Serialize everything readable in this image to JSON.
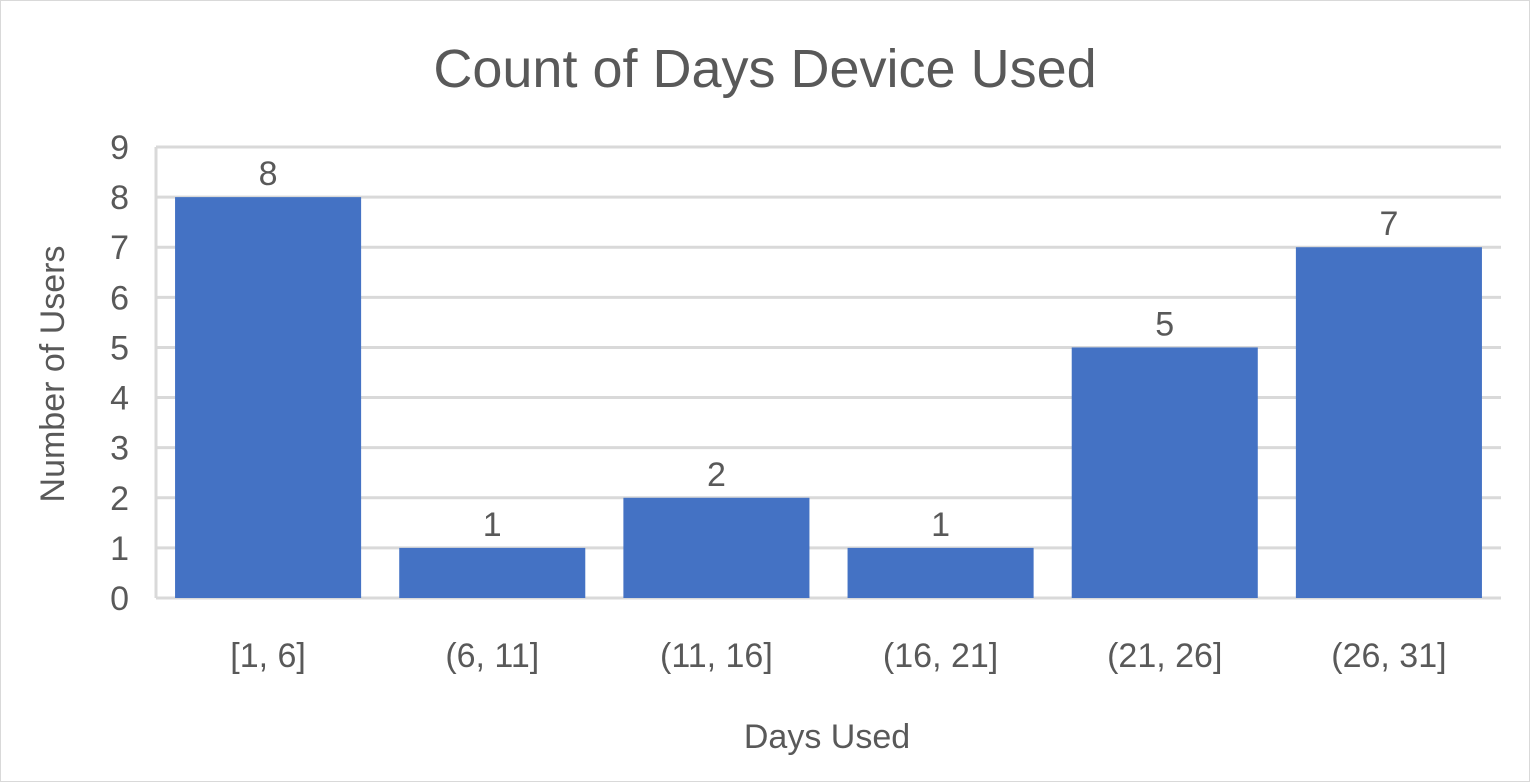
{
  "chart_data": {
    "type": "bar",
    "title": "Count of Days Device Used",
    "xlabel": "Days Used",
    "ylabel": "Number of Users",
    "categories": [
      "[1, 6]",
      "(6, 11]",
      "(11, 16]",
      "(16, 21]",
      "(21, 26]",
      "(26, 31]"
    ],
    "values": [
      8,
      1,
      2,
      1,
      5,
      7
    ],
    "ylim": [
      0,
      9
    ],
    "yticks": [
      0,
      1,
      2,
      3,
      4,
      5,
      6,
      7,
      8,
      9
    ],
    "grid": true,
    "legend": "none",
    "bar_color": "#4472C4",
    "data_labels": true
  }
}
